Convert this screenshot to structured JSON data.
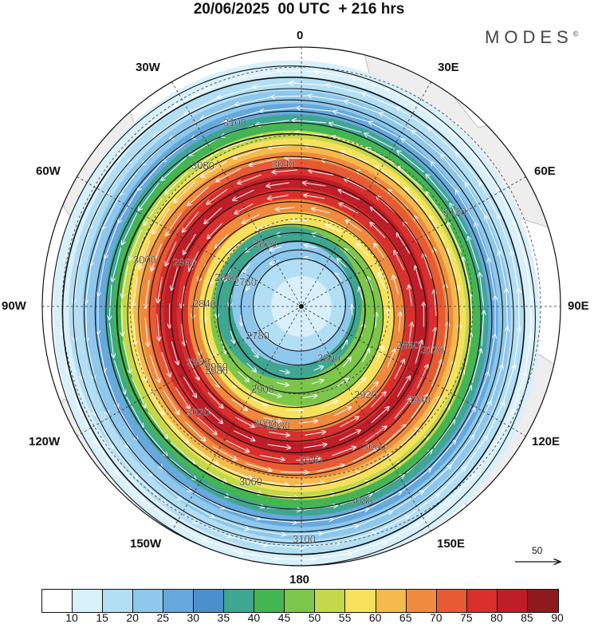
{
  "title": "20/06/2025  00 UTC  + 216 hrs",
  "brand": "MODES",
  "brand_mark": "©",
  "longitude_labels": {
    "lon_0": "0",
    "lon_30e": "30E",
    "lon_60e": "60E",
    "lon_90e": "90E",
    "lon_120e": "120E",
    "lon_150e": "150E",
    "lon_180": "180",
    "lon_150w": "150W",
    "lon_120w": "120W",
    "lon_90w": "90W",
    "lon_60w": "60W",
    "lon_30w": "30W"
  },
  "contours": [
    {
      "value": 2760
    },
    {
      "value": 2780
    },
    {
      "value": 2800
    },
    {
      "value": 2820
    },
    {
      "value": 2840
    },
    {
      "value": 2860
    },
    {
      "value": 2880
    },
    {
      "value": 2900
    },
    {
      "value": 2920
    },
    {
      "value": 2940
    },
    {
      "value": 2960
    },
    {
      "value": 2980
    },
    {
      "value": 3000
    },
    {
      "value": 3020
    },
    {
      "value": 3040
    },
    {
      "value": 3060
    },
    {
      "value": 3080
    },
    {
      "value": 3100
    },
    {
      "value": 3120
    }
  ],
  "contour_labels_shown": [
    "3100",
    "3080",
    "3040",
    "3120",
    "3060",
    "3000",
    "2960",
    "2980",
    "2820",
    "2860",
    "2840",
    "2760",
    "2780",
    "2800",
    "2860",
    "2880",
    "2900",
    "2920",
    "2940",
    "2960",
    "2980",
    "3000",
    "3020",
    "3040",
    "3060",
    "3080",
    "3100",
    "3120"
  ],
  "wind_reference": {
    "value": "50"
  },
  "colorbar": {
    "ticks": [
      "10",
      "15",
      "20",
      "25",
      "30",
      "35",
      "40",
      "45",
      "50",
      "55",
      "60",
      "65",
      "70",
      "75",
      "80",
      "85",
      "90"
    ],
    "colors": [
      "#ffffff",
      "#d8f0fa",
      "#b3dff5",
      "#8ec8ec",
      "#66a9dc",
      "#4b8fcc",
      "#3fa690",
      "#43b552",
      "#7cc64a",
      "#c3d94a",
      "#f7e15c",
      "#f6b94c",
      "#f08a3d",
      "#e65a34",
      "#d92f2d",
      "#bf1d27",
      "#8f1a1e"
    ]
  }
}
